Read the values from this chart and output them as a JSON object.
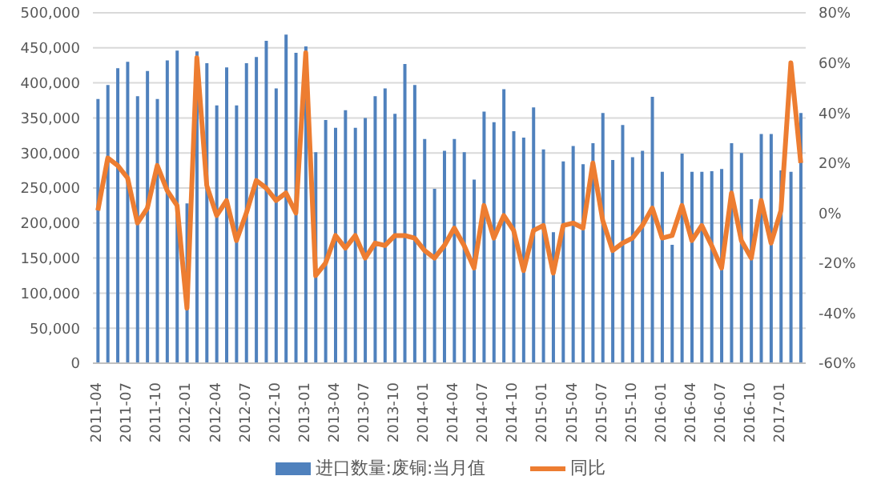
{
  "chart_data": {
    "type": "bar",
    "categories": [
      "2011-04",
      null,
      null,
      "2011-07",
      null,
      null,
      "2011-10",
      null,
      null,
      "2012-01",
      null,
      null,
      "2012-04",
      null,
      null,
      "2012-07",
      null,
      null,
      "2012-10",
      null,
      null,
      "2013-01",
      null,
      null,
      "2013-04",
      null,
      null,
      "2013-07",
      null,
      null,
      "2013-10",
      null,
      null,
      "2014-01",
      null,
      null,
      "2014-04",
      null,
      null,
      "2014-07",
      null,
      null,
      "2014-10",
      null,
      null,
      "2015-01",
      null,
      null,
      "2015-04",
      null,
      null,
      "2015-07",
      null,
      null,
      "2015-10",
      null,
      null,
      "2016-01",
      null,
      null,
      "2016-04",
      null,
      null,
      "2016-07",
      null,
      null,
      "2016-10",
      null,
      null,
      "2017-01",
      null,
      null
    ],
    "series": [
      {
        "name": "进口数量:废铜:当月值",
        "color": "#4f81bd",
        "values": [
          377000,
          397000,
          421000,
          430000,
          381000,
          417000,
          377000,
          432000,
          446000,
          228000,
          445000,
          428000,
          368000,
          422000,
          368000,
          428000,
          437000,
          460000,
          392000,
          469000,
          443000,
          452000,
          301000,
          347000,
          336000,
          361000,
          336000,
          350000,
          381000,
          392000,
          356000,
          427000,
          397000,
          320000,
          249000,
          303000,
          320000,
          301000,
          262000,
          359000,
          344000,
          391000,
          331000,
          322000,
          365000,
          305000,
          187000,
          288000,
          310000,
          284000,
          314000,
          357000,
          290000,
          340000,
          294000,
          303000,
          380000,
          273000,
          169000,
          299000,
          273000,
          273000,
          274000,
          277000,
          314000,
          300000,
          234000,
          327000,
          327000,
          275000,
          273000,
          357000
        ]
      },
      {
        "name": "同比",
        "type": "line",
        "axis": "y2",
        "color": "#ed7d31",
        "values": [
          1,
          22,
          19,
          14,
          -4,
          2,
          19,
          9,
          3,
          -38,
          62,
          11,
          -1,
          5,
          -11,
          0,
          13,
          10,
          5,
          8,
          0,
          64,
          -25,
          -20,
          -9,
          -14,
          -9,
          -18,
          -12,
          -13,
          -9,
          -9,
          -10,
          -15,
          -18,
          -13,
          -6,
          -13,
          -22,
          3,
          -10,
          -1,
          -7,
          -23,
          -7,
          -5,
          -24,
          -5,
          -4,
          -6,
          20,
          -3,
          -15,
          -12,
          -10,
          -5,
          2,
          -10,
          -9,
          3,
          -11,
          -5,
          -13,
          -22,
          8,
          -11,
          -18,
          5,
          -12,
          1,
          60,
          20
        ]
      }
    ],
    "ylim": [
      0,
      500000
    ],
    "yticks": [
      0,
      {
        "value": 50000,
        "label": "50,000"
      },
      {
        "value": 100000,
        "label": "100,000"
      },
      {
        "value": 150000,
        "label": "150,000"
      },
      {
        "value": 200000,
        "label": "200,000"
      },
      {
        "value": 250000,
        "label": "250,000"
      },
      {
        "value": 300000,
        "label": "300,000"
      },
      {
        "value": 350000,
        "label": "350,000"
      },
      {
        "value": 400000,
        "label": "400,000"
      },
      {
        "value": 450000,
        "label": "450,000"
      },
      {
        "value": 500000,
        "label": "500,000"
      }
    ],
    "y2lim": [
      -60,
      80
    ],
    "y2ticks": [
      {
        "value": -60,
        "label": "-60%"
      },
      {
        "value": -40,
        "label": "-40%"
      },
      {
        "value": -20,
        "label": "-20%"
      },
      {
        "value": 0,
        "label": "0%"
      },
      {
        "value": 20,
        "label": "20%"
      },
      {
        "value": 40,
        "label": "40%"
      },
      {
        "value": 60,
        "label": "60%"
      },
      {
        "value": 80,
        "label": "80%"
      }
    ],
    "grid": "y",
    "legend": "bottom",
    "marker": "none",
    "line_style": "solid"
  }
}
